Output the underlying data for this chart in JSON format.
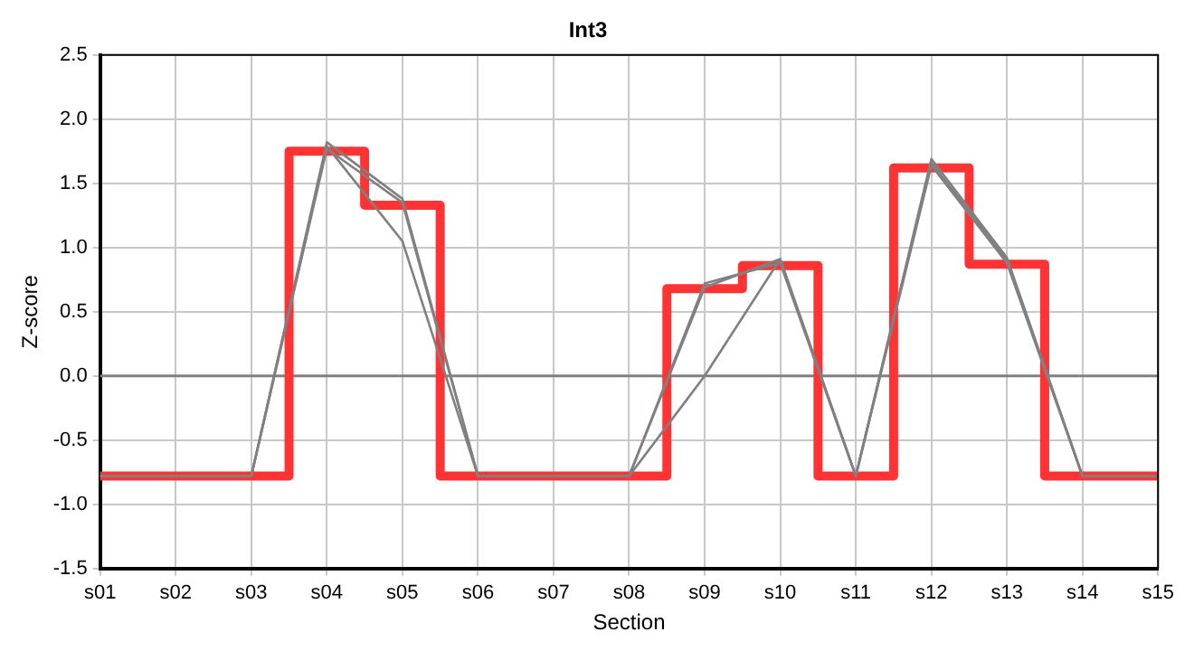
{
  "chart_data": {
    "type": "line",
    "title": "Int3",
    "xlabel": "Section",
    "ylabel": "Z-score",
    "categories": [
      "s01",
      "s02",
      "s03",
      "s04",
      "s05",
      "s06",
      "s07",
      "s08",
      "s09",
      "s10",
      "s11",
      "s12",
      "s13",
      "s14",
      "s15"
    ],
    "series": [
      {
        "color": "#808080",
        "values": [
          -0.78,
          -0.78,
          -0.78,
          1.82,
          1.38,
          -0.78,
          -0.78,
          -0.78,
          0.69,
          0.91,
          -0.78,
          1.69,
          0.92,
          -0.78,
          -0.78
        ]
      },
      {
        "color": "#808080",
        "values": [
          -0.78,
          -0.78,
          -0.78,
          1.77,
          1.35,
          -0.78,
          -0.78,
          -0.78,
          0.72,
          0.88,
          -0.78,
          1.64,
          0.88,
          -0.78,
          -0.78
        ]
      },
      {
        "color": "#808080",
        "values": [
          -0.78,
          -0.78,
          -0.78,
          1.79,
          1.05,
          -0.78,
          -0.78,
          -0.78,
          0.0,
          0.91,
          -0.78,
          1.66,
          0.9,
          -0.78,
          -0.78
        ]
      },
      {
        "type": "step",
        "color": "#ff3333",
        "values": [
          -0.78,
          -0.78,
          -0.78,
          1.75,
          1.33,
          -0.78,
          -0.78,
          -0.78,
          0.68,
          0.86,
          -0.78,
          1.62,
          0.87,
          -0.78,
          -0.78
        ]
      }
    ],
    "ylim": [
      -1.5,
      2.5
    ],
    "yticks": [
      {
        "value": -1.5,
        "label": "-1.5"
      },
      {
        "value": -1,
        "label": "-1.0"
      },
      {
        "value": -0.5,
        "label": "-0.5"
      },
      {
        "value": 0,
        "label": "0.0"
      },
      {
        "value": 0.5,
        "label": "0.5"
      },
      {
        "value": 1,
        "label": "1.0"
      },
      {
        "value": 1.5,
        "label": "1.5"
      },
      {
        "value": 2,
        "label": "2.0"
      },
      {
        "value": 2.5,
        "label": "2.5"
      }
    ],
    "ref_lines": [
      {
        "axis": "y",
        "value": 0,
        "color": "#808080"
      }
    ],
    "grid": true,
    "legend": false,
    "marker": "none",
    "line_style": "solid"
  }
}
